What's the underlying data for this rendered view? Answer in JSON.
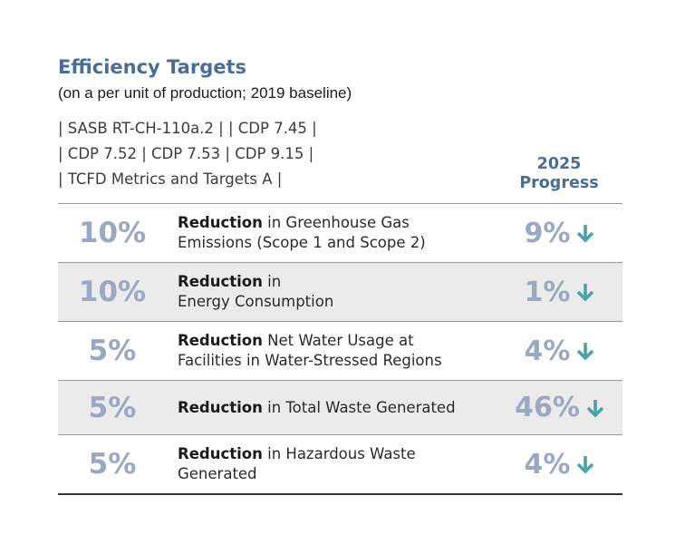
{
  "title": "Efficiency Targets",
  "subtitle": "(on a per unit of production; 2019 baseline)",
  "references": [
    "| SASB RT-CH-110a.2 | | CDP 7.45 |",
    "| CDP 7.52 | CDP 7.53 | CDP 9.15 |",
    "| TCFD Metrics and Targets A |"
  ],
  "progress_header": [
    "2025",
    "Progress"
  ],
  "colors": {
    "title": "#4a6c98",
    "figure": "#9aa8c2",
    "arrow": "#4aa3a9",
    "shade": "#ebebeb"
  },
  "rows": [
    {
      "target": "10%",
      "bold": "Reduction",
      "line1_rest": " in Greenhouse Gas",
      "line2": "Emissions (Scope 1 and Scope 2)",
      "progress": "9%",
      "icon": "arrow-down-icon"
    },
    {
      "target": "10%",
      "bold": "Reduction",
      "line1_rest": " in",
      "line2": "Energy Consumption",
      "progress": "1%",
      "icon": "arrow-down-icon"
    },
    {
      "target": "5%",
      "bold": "Reduction",
      "line1_rest": " Net Water Usage at",
      "line2": "Facilities in Water-Stressed Regions",
      "progress": "4%",
      "icon": "arrow-down-icon"
    },
    {
      "target": "5%",
      "bold": "Reduction",
      "line1_rest": " in Total Waste Generated",
      "line2": "",
      "progress": "46%",
      "icon": "arrow-down-icon"
    },
    {
      "target": "5%",
      "bold": "Reduction",
      "line1_rest": " in Hazardous Waste",
      "line2": "Generated",
      "progress": "4%",
      "icon": "arrow-down-icon"
    }
  ]
}
